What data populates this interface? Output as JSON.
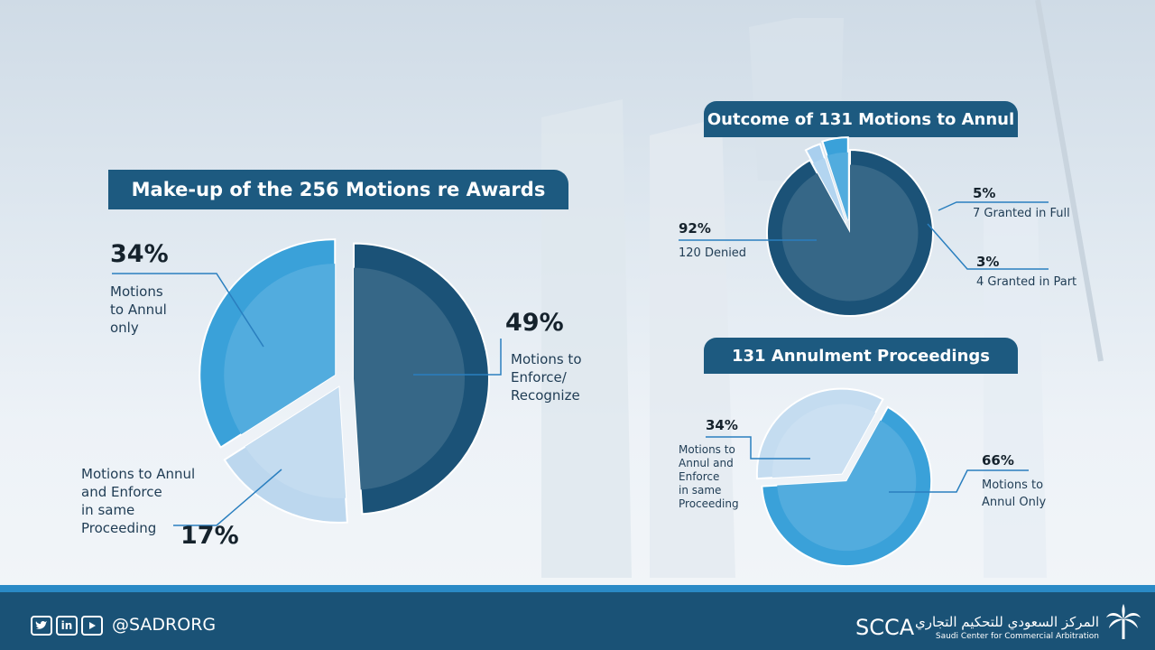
{
  "chart_data": [
    {
      "type": "pie",
      "title": "Make-up of the 256 Motions re Awards",
      "slices": [
        {
          "key": "enforce",
          "label": "Motions to\nEnforce/\nRecognize",
          "pct_label": "49%",
          "value": 49,
          "color": "#1b5277"
        },
        {
          "key": "combined",
          "label": "Motions to Annul\nand Enforce\nin same\nProceeding",
          "pct_label": "17%",
          "value": 17,
          "color": "#bcd7ee"
        },
        {
          "key": "annul_only",
          "label": "Motions\nto Annul\nonly",
          "pct_label": "34%",
          "value": 34,
          "color": "#3aa1d9"
        }
      ]
    },
    {
      "type": "pie",
      "title": "Outcome of 131 Motions to Annul",
      "slices": [
        {
          "key": "denied",
          "label": "120 Denied",
          "pct_label": "92%",
          "value": 92,
          "color": "#1b5277"
        },
        {
          "key": "granted_part",
          "label": "4 Granted in Part",
          "pct_label": "3%",
          "value": 3,
          "color": "#a9cfee"
        },
        {
          "key": "granted_full",
          "label": "7 Granted in Full",
          "pct_label": "5%",
          "value": 5,
          "color": "#3aa1d9"
        }
      ]
    },
    {
      "type": "pie",
      "title": "131 Annulment Proceedings",
      "slices": [
        {
          "key": "annul_only",
          "label": "Motions to\nAnnul Only",
          "pct_label": "66%",
          "value": 66,
          "color": "#3aa1d9"
        },
        {
          "key": "same_proceeding",
          "label": "Motions to\nAnnul and\nEnforce\nin same\nProceeding",
          "pct_label": "34%",
          "value": 34,
          "color": "#c4dcf0"
        }
      ]
    }
  ],
  "footer": {
    "handle": "@SADRORG",
    "brand": "SCCA",
    "org_arabic": "المركز السعودي للتحكيم التجاري",
    "org_english": "Saudi Center for Commercial Arbitration"
  }
}
